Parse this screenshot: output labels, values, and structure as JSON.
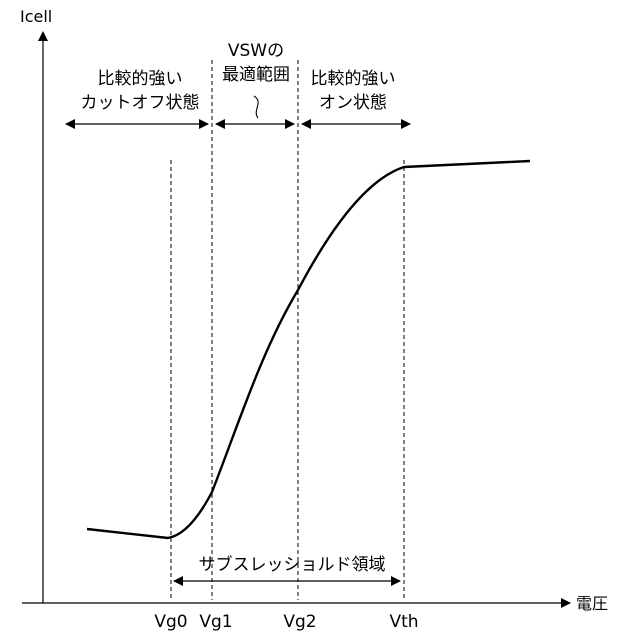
{
  "axes": {
    "y_label": "Icell",
    "x_label": "電圧"
  },
  "ticks": [
    "Vg0",
    "Vg1",
    "Vg2",
    "Vth"
  ],
  "regions": {
    "cutoff": [
      "比較的強い",
      "カットオフ状態"
    ],
    "optimal": [
      "VSWの",
      "最適範囲"
    ],
    "on": [
      "比較的強い",
      "オン状態"
    ],
    "subthreshold": "サブスレッショルド領域"
  }
}
